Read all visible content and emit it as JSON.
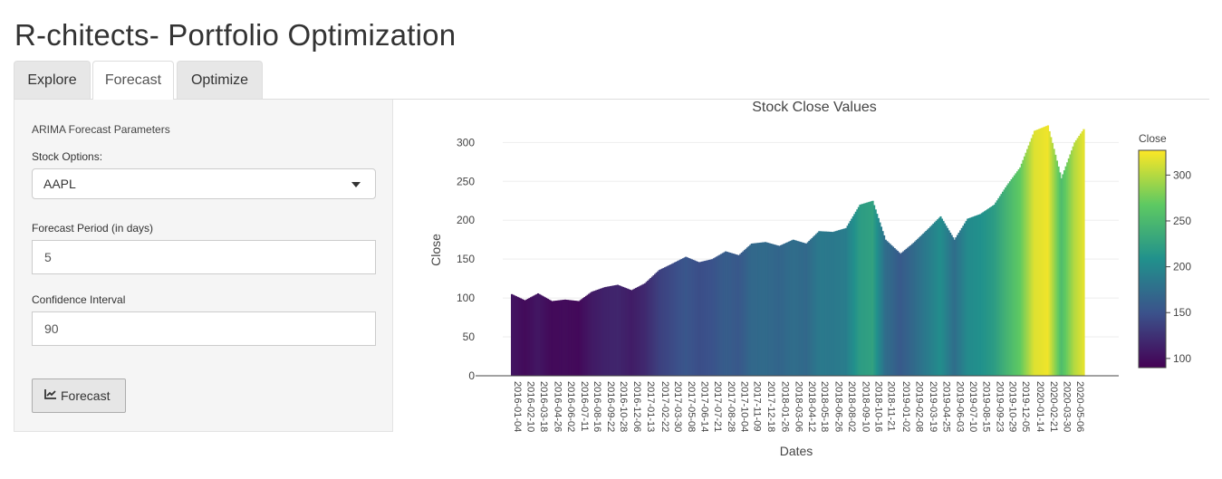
{
  "app": {
    "title": "R-chitects- Portfolio Optimization"
  },
  "tabs": [
    {
      "label": "Explore",
      "active": false
    },
    {
      "label": "Forecast",
      "active": true
    },
    {
      "label": "Optimize",
      "active": false
    }
  ],
  "sidebar": {
    "section_title": "ARIMA Forecast Parameters",
    "stock_label": "Stock Options:",
    "stock_value": "AAPL",
    "period_label": "Forecast Period (in days)",
    "period_value": "5",
    "ci_label": "Confidence Interval",
    "ci_value": "90",
    "forecast_button": "Forecast",
    "forecast_button_icon": "line-chart-icon"
  },
  "chart_data": {
    "type": "bar",
    "title": "Stock Close Values",
    "xlabel": "Dates",
    "ylabel": "Close",
    "ylim": [
      0,
      340
    ],
    "yticks": [
      0,
      50,
      100,
      150,
      200,
      250,
      300
    ],
    "grid": true,
    "colorscale": "viridis",
    "colorbar": {
      "title": "Close",
      "range": [
        90,
        327
      ],
      "ticks": [
        100,
        150,
        200,
        250,
        300
      ]
    },
    "x_tick_labels": [
      "2016-01-04",
      "2016-02-10",
      "2016-03-18",
      "2016-04-26",
      "2016-06-02",
      "2016-07-11",
      "2016-08-16",
      "2016-09-22",
      "2016-10-28",
      "2016-12-06",
      "2017-01-13",
      "2017-02-22",
      "2017-03-30",
      "2017-05-08",
      "2017-06-14",
      "2017-07-21",
      "2017-08-28",
      "2017-10-04",
      "2017-11-09",
      "2017-12-18",
      "2018-01-26",
      "2018-03-06",
      "2018-04-12",
      "2018-05-18",
      "2018-06-26",
      "2018-08-02",
      "2018-09-10",
      "2018-10-16",
      "2018-11-21",
      "2019-01-02",
      "2019-02-08",
      "2019-03-19",
      "2019-04-25",
      "2019-06-03",
      "2019-07-10",
      "2019-08-15",
      "2019-09-23",
      "2019-10-29",
      "2019-12-05",
      "2020-01-14",
      "2020-02-21",
      "2020-03-30",
      "2020-05-06"
    ],
    "x": [
      "2016-01-04",
      "2016-02-10",
      "2016-03-18",
      "2016-04-26",
      "2016-06-02",
      "2016-07-11",
      "2016-08-16",
      "2016-09-22",
      "2016-10-28",
      "2016-12-06",
      "2017-01-13",
      "2017-02-22",
      "2017-03-30",
      "2017-05-08",
      "2017-06-14",
      "2017-07-21",
      "2017-08-28",
      "2017-10-04",
      "2017-11-09",
      "2017-12-18",
      "2018-01-26",
      "2018-03-06",
      "2018-04-12",
      "2018-05-18",
      "2018-06-26",
      "2018-08-02",
      "2018-09-10",
      "2018-10-16",
      "2018-11-21",
      "2019-01-02",
      "2019-02-08",
      "2019-03-19",
      "2019-04-25",
      "2019-06-03",
      "2019-07-10",
      "2019-08-15",
      "2019-09-23",
      "2019-10-29",
      "2019-12-05",
      "2020-01-14",
      "2020-02-21",
      "2020-03-30",
      "2020-05-06",
      "2020-06-05"
    ],
    "values": [
      105,
      97,
      106,
      96,
      98,
      96,
      108,
      114,
      117,
      110,
      119,
      136,
      144,
      153,
      146,
      150,
      160,
      155,
      170,
      172,
      167,
      175,
      170,
      186,
      185,
      190,
      220,
      225,
      175,
      157,
      171,
      188,
      205,
      175,
      202,
      208,
      220,
      245,
      268,
      315,
      322,
      254,
      300,
      320
    ]
  }
}
